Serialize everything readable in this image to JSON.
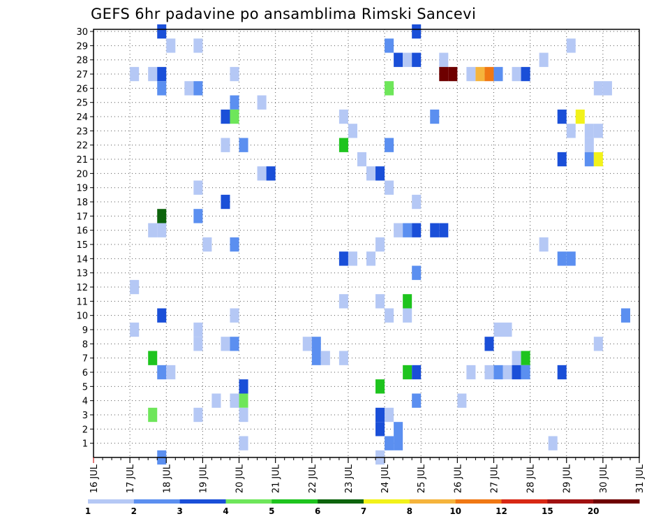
{
  "chart_data": {
    "type": "heatmap",
    "title": "GEFS 6hr padavine po ansamblima Rimski Sancevi",
    "xlabel": "",
    "ylabel": "",
    "x_ticks": [
      "16 JUL",
      "17 JUL",
      "18 JUL",
      "19 JUL",
      "20 JUL",
      "21 JUL",
      "22 JUL",
      "23 JUL",
      "24 JUL",
      "25 JUL",
      "26 JUL",
      "27 JUL",
      "28 JUL",
      "29 JUL",
      "30 JUL",
      "31 JUL"
    ],
    "x_range": [
      16,
      31
    ],
    "y_ticks": [
      1,
      2,
      3,
      4,
      5,
      6,
      7,
      8,
      9,
      10,
      11,
      12,
      13,
      14,
      15,
      16,
      17,
      18,
      19,
      20,
      21,
      22,
      23,
      24,
      25,
      26,
      27,
      28,
      29,
      30
    ],
    "y_range": [
      0,
      30
    ],
    "grid": "dotted",
    "legend": {
      "placement": "bottom",
      "levels": [
        "1",
        "2",
        "3",
        "4",
        "5",
        "6",
        "7",
        "8",
        "10",
        "12",
        "15",
        "20"
      ],
      "colors": [
        "#b5c8f5",
        "#5b8ff0",
        "#1a4fd8",
        "#6ee65a",
        "#1ec41e",
        "#0d640d",
        "#f2f21a",
        "#f5b43c",
        "#f07814",
        "#d82814",
        "#a01010",
        "#6e0000"
      ]
    },
    "cells_note": "each cell: x = day (start of 6-hour block, JUL), y = ensemble member, c = color class index 0-11",
    "cells": [
      {
        "x": 17.75,
        "y": 30,
        "c": 2
      },
      {
        "x": 24.75,
        "y": 30,
        "c": 2
      },
      {
        "x": 18.0,
        "y": 29,
        "c": 0
      },
      {
        "x": 18.75,
        "y": 29,
        "c": 0
      },
      {
        "x": 24.0,
        "y": 29,
        "c": 1
      },
      {
        "x": 29.0,
        "y": 29,
        "c": 0
      },
      {
        "x": 24.25,
        "y": 28,
        "c": 2
      },
      {
        "x": 24.5,
        "y": 28,
        "c": 0
      },
      {
        "x": 24.75,
        "y": 28,
        "c": 2
      },
      {
        "x": 25.5,
        "y": 28,
        "c": 0
      },
      {
        "x": 28.25,
        "y": 28,
        "c": 0
      },
      {
        "x": 17.0,
        "y": 27,
        "c": 0
      },
      {
        "x": 17.5,
        "y": 27,
        "c": 0
      },
      {
        "x": 17.75,
        "y": 27,
        "c": 2
      },
      {
        "x": 19.75,
        "y": 27,
        "c": 0
      },
      {
        "x": 25.5,
        "y": 27,
        "c": 11
      },
      {
        "x": 25.75,
        "y": 27,
        "c": 11
      },
      {
        "x": 26.25,
        "y": 27,
        "c": 0
      },
      {
        "x": 26.5,
        "y": 27,
        "c": 7
      },
      {
        "x": 26.75,
        "y": 27,
        "c": 8
      },
      {
        "x": 27.0,
        "y": 27,
        "c": 1
      },
      {
        "x": 27.5,
        "y": 27,
        "c": 0
      },
      {
        "x": 27.75,
        "y": 27,
        "c": 2
      },
      {
        "x": 17.75,
        "y": 26,
        "c": 1
      },
      {
        "x": 18.5,
        "y": 26,
        "c": 0
      },
      {
        "x": 18.75,
        "y": 26,
        "c": 1
      },
      {
        "x": 24.0,
        "y": 26,
        "c": 3
      },
      {
        "x": 29.75,
        "y": 26,
        "c": 0
      },
      {
        "x": 30.0,
        "y": 26,
        "c": 0
      },
      {
        "x": 19.75,
        "y": 25,
        "c": 1
      },
      {
        "x": 20.5,
        "y": 25,
        "c": 0
      },
      {
        "x": 19.5,
        "y": 24,
        "c": 2
      },
      {
        "x": 19.75,
        "y": 24,
        "c": 3
      },
      {
        "x": 22.75,
        "y": 24,
        "c": 0
      },
      {
        "x": 25.25,
        "y": 24,
        "c": 1
      },
      {
        "x": 28.75,
        "y": 24,
        "c": 2
      },
      {
        "x": 29.25,
        "y": 24,
        "c": 6
      },
      {
        "x": 23.0,
        "y": 23,
        "c": 0
      },
      {
        "x": 29.0,
        "y": 23,
        "c": 0
      },
      {
        "x": 29.5,
        "y": 23,
        "c": 0
      },
      {
        "x": 29.75,
        "y": 23,
        "c": 0
      },
      {
        "x": 19.5,
        "y": 22,
        "c": 0
      },
      {
        "x": 20.0,
        "y": 22,
        "c": 1
      },
      {
        "x": 22.75,
        "y": 22,
        "c": 4
      },
      {
        "x": 24.0,
        "y": 22,
        "c": 1
      },
      {
        "x": 29.5,
        "y": 22,
        "c": 0
      },
      {
        "x": 23.25,
        "y": 21,
        "c": 0
      },
      {
        "x": 28.75,
        "y": 21,
        "c": 2
      },
      {
        "x": 29.5,
        "y": 21,
        "c": 1
      },
      {
        "x": 29.75,
        "y": 21,
        "c": 6
      },
      {
        "x": 20.5,
        "y": 20,
        "c": 0
      },
      {
        "x": 20.75,
        "y": 20,
        "c": 2
      },
      {
        "x": 23.5,
        "y": 20,
        "c": 0
      },
      {
        "x": 23.75,
        "y": 20,
        "c": 2
      },
      {
        "x": 18.75,
        "y": 19,
        "c": 0
      },
      {
        "x": 24.0,
        "y": 19,
        "c": 0
      },
      {
        "x": 19.5,
        "y": 18,
        "c": 2
      },
      {
        "x": 24.75,
        "y": 18,
        "c": 0
      },
      {
        "x": 17.75,
        "y": 17,
        "c": 5
      },
      {
        "x": 18.75,
        "y": 17,
        "c": 1
      },
      {
        "x": 17.5,
        "y": 16,
        "c": 0
      },
      {
        "x": 17.75,
        "y": 16,
        "c": 0
      },
      {
        "x": 24.25,
        "y": 16,
        "c": 0
      },
      {
        "x": 24.5,
        "y": 16,
        "c": 1
      },
      {
        "x": 24.75,
        "y": 16,
        "c": 2
      },
      {
        "x": 25.25,
        "y": 16,
        "c": 2
      },
      {
        "x": 25.5,
        "y": 16,
        "c": 2
      },
      {
        "x": 19.0,
        "y": 15,
        "c": 0
      },
      {
        "x": 19.75,
        "y": 15,
        "c": 1
      },
      {
        "x": 23.75,
        "y": 15,
        "c": 0
      },
      {
        "x": 28.25,
        "y": 15,
        "c": 0
      },
      {
        "x": 22.75,
        "y": 14,
        "c": 2
      },
      {
        "x": 23.0,
        "y": 14,
        "c": 0
      },
      {
        "x": 23.5,
        "y": 14,
        "c": 0
      },
      {
        "x": 28.75,
        "y": 14,
        "c": 1
      },
      {
        "x": 29.0,
        "y": 14,
        "c": 1
      },
      {
        "x": 24.75,
        "y": 13,
        "c": 1
      },
      {
        "x": 17.0,
        "y": 12,
        "c": 0
      },
      {
        "x": 22.75,
        "y": 11,
        "c": 0
      },
      {
        "x": 23.75,
        "y": 11,
        "c": 0
      },
      {
        "x": 24.5,
        "y": 11,
        "c": 4
      },
      {
        "x": 17.75,
        "y": 10,
        "c": 2
      },
      {
        "x": 19.75,
        "y": 10,
        "c": 0
      },
      {
        "x": 24.0,
        "y": 10,
        "c": 0
      },
      {
        "x": 24.5,
        "y": 10,
        "c": 0
      },
      {
        "x": 30.5,
        "y": 10,
        "c": 1
      },
      {
        "x": 17.0,
        "y": 9,
        "c": 0
      },
      {
        "x": 18.75,
        "y": 9,
        "c": 0
      },
      {
        "x": 27.0,
        "y": 9,
        "c": 0
      },
      {
        "x": 27.25,
        "y": 9,
        "c": 0
      },
      {
        "x": 18.75,
        "y": 8,
        "c": 0
      },
      {
        "x": 19.5,
        "y": 8,
        "c": 0
      },
      {
        "x": 19.75,
        "y": 8,
        "c": 1
      },
      {
        "x": 21.75,
        "y": 8,
        "c": 0
      },
      {
        "x": 22.0,
        "y": 8,
        "c": 1
      },
      {
        "x": 26.75,
        "y": 8,
        "c": 2
      },
      {
        "x": 29.75,
        "y": 8,
        "c": 0
      },
      {
        "x": 17.5,
        "y": 7,
        "c": 4
      },
      {
        "x": 22.0,
        "y": 7,
        "c": 1
      },
      {
        "x": 22.25,
        "y": 7,
        "c": 0
      },
      {
        "x": 22.75,
        "y": 7,
        "c": 0
      },
      {
        "x": 27.5,
        "y": 7,
        "c": 0
      },
      {
        "x": 27.75,
        "y": 7,
        "c": 4
      },
      {
        "x": 17.75,
        "y": 6,
        "c": 1
      },
      {
        "x": 18.0,
        "y": 6,
        "c": 0
      },
      {
        "x": 24.5,
        "y": 6,
        "c": 4
      },
      {
        "x": 24.75,
        "y": 6,
        "c": 2
      },
      {
        "x": 26.25,
        "y": 6,
        "c": 0
      },
      {
        "x": 26.75,
        "y": 6,
        "c": 0
      },
      {
        "x": 27.0,
        "y": 6,
        "c": 1
      },
      {
        "x": 27.25,
        "y": 6,
        "c": 0
      },
      {
        "x": 27.5,
        "y": 6,
        "c": 2
      },
      {
        "x": 27.75,
        "y": 6,
        "c": 1
      },
      {
        "x": 28.75,
        "y": 6,
        "c": 2
      },
      {
        "x": 20.0,
        "y": 5,
        "c": 2
      },
      {
        "x": 23.75,
        "y": 5,
        "c": 4
      },
      {
        "x": 19.25,
        "y": 4,
        "c": 0
      },
      {
        "x": 19.75,
        "y": 4,
        "c": 0
      },
      {
        "x": 20.0,
        "y": 4,
        "c": 3
      },
      {
        "x": 24.75,
        "y": 4,
        "c": 1
      },
      {
        "x": 26.0,
        "y": 4,
        "c": 0
      },
      {
        "x": 17.5,
        "y": 3,
        "c": 3
      },
      {
        "x": 18.75,
        "y": 3,
        "c": 0
      },
      {
        "x": 20.0,
        "y": 3,
        "c": 0
      },
      {
        "x": 23.75,
        "y": 3,
        "c": 2
      },
      {
        "x": 24.0,
        "y": 3,
        "c": 0
      },
      {
        "x": 23.75,
        "y": 2,
        "c": 2
      },
      {
        "x": 24.25,
        "y": 2,
        "c": 1
      },
      {
        "x": 20.0,
        "y": 1,
        "c": 0
      },
      {
        "x": 24.0,
        "y": 1,
        "c": 1
      },
      {
        "x": 24.25,
        "y": 1,
        "c": 1
      },
      {
        "x": 28.5,
        "y": 1,
        "c": 0
      },
      {
        "x": 17.75,
        "y": 0,
        "c": 1
      },
      {
        "x": 23.75,
        "y": 0,
        "c": 0
      }
    ]
  }
}
